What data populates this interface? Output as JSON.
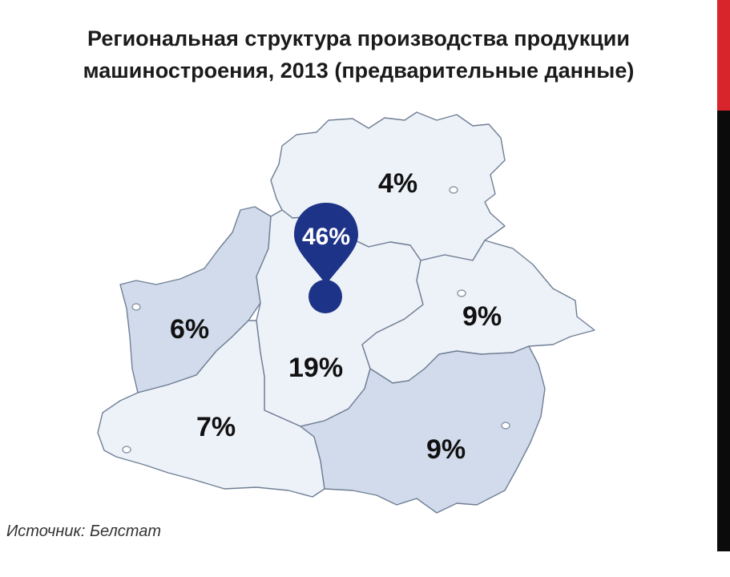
{
  "title": {
    "line1": "Региональная структура производства продукции",
    "line2": "машиностроения, 2013 (предварительные данные)"
  },
  "source": "Источник: Белстат",
  "colors": {
    "light_region": "#edf1f8",
    "medium_region": "#d1dbeb",
    "pin": "#1c3388",
    "accent_red": "#d8242b"
  },
  "regions": [
    {
      "id": "vitebsk",
      "label": "4%",
      "value": 4
    },
    {
      "id": "minsk-region",
      "label": "19%",
      "value": 19
    },
    {
      "id": "minsk-city",
      "label": "46%",
      "value": 46
    },
    {
      "id": "mogilev",
      "label": "9%",
      "value": 9
    },
    {
      "id": "grodno",
      "label": "6%",
      "value": 6
    },
    {
      "id": "brest",
      "label": "7%",
      "value": 7
    },
    {
      "id": "gomel",
      "label": "9%",
      "value": 9
    }
  ]
}
